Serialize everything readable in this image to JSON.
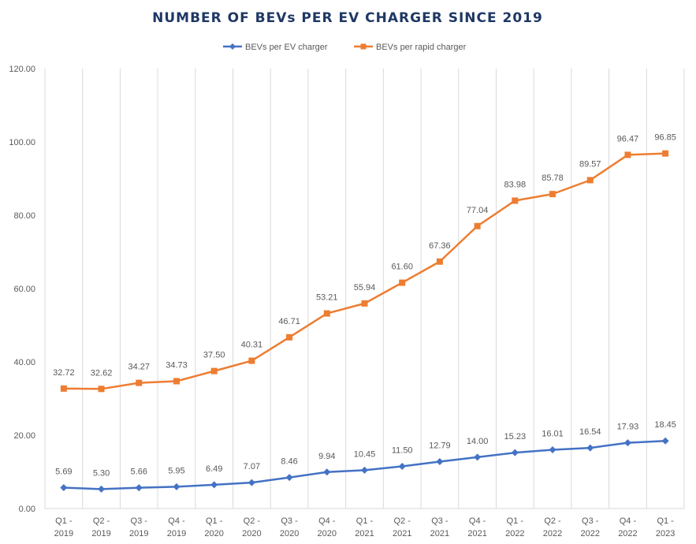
{
  "chart_data": {
    "type": "line",
    "title": "NUMBER OF BEVs PER EV CHARGER SINCE 2019",
    "categories": [
      [
        "Q1 -",
        "2019"
      ],
      [
        "Q2 -",
        "2019"
      ],
      [
        "Q3 -",
        "2019"
      ],
      [
        "Q4 -",
        "2019"
      ],
      [
        "Q1 -",
        "2020"
      ],
      [
        "Q2 -",
        "2020"
      ],
      [
        "Q3 -",
        "2020"
      ],
      [
        "Q4 -",
        "2020"
      ],
      [
        "Q1 -",
        "2021"
      ],
      [
        "Q2 -",
        "2021"
      ],
      [
        "Q3 -",
        "2021"
      ],
      [
        "Q4 -",
        "2021"
      ],
      [
        "Q1 -",
        "2022"
      ],
      [
        "Q2 -",
        "2022"
      ],
      [
        "Q3 -",
        "2022"
      ],
      [
        "Q4 -",
        "2022"
      ],
      [
        "Q1 -",
        "2023"
      ]
    ],
    "series": [
      {
        "name": "BEVs per EV charger",
        "color": "#4472c4",
        "marker": "diamond",
        "values": [
          5.69,
          5.3,
          5.66,
          5.95,
          6.49,
          7.07,
          8.46,
          9.94,
          10.45,
          11.5,
          12.79,
          14.0,
          15.23,
          16.01,
          16.54,
          17.93,
          18.45
        ]
      },
      {
        "name": "BEVs per rapid charger",
        "color": "#ed7d31",
        "marker": "square",
        "values": [
          32.72,
          32.62,
          34.27,
          34.73,
          37.5,
          40.31,
          46.71,
          53.21,
          55.94,
          61.6,
          67.36,
          77.04,
          83.98,
          85.78,
          89.57,
          96.47,
          96.85
        ]
      }
    ],
    "ylim": [
      0,
      120
    ],
    "yticks": [
      "0.00",
      "20.00",
      "40.00",
      "60.00",
      "80.00",
      "100.00",
      "120.00"
    ],
    "ytick_values": [
      0,
      20,
      40,
      60,
      80,
      100,
      120
    ],
    "grid": "vertical",
    "legend": "top-center",
    "xlabel": "",
    "ylabel": ""
  }
}
